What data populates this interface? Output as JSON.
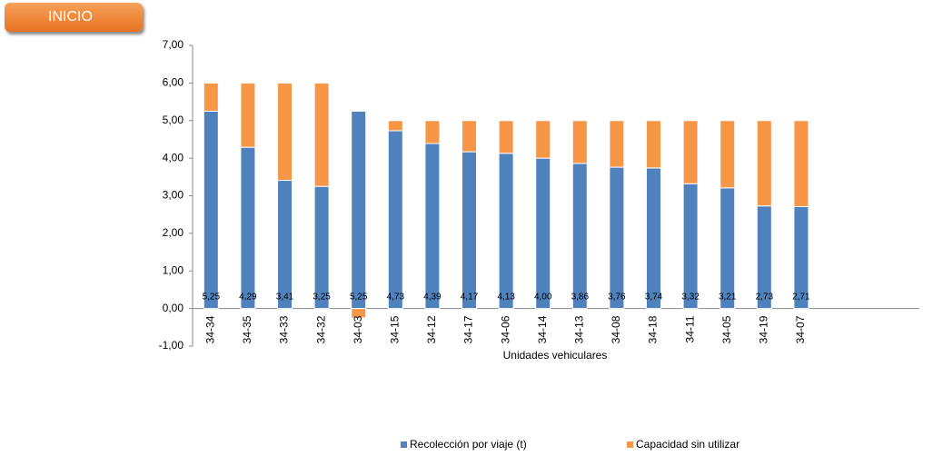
{
  "button": {
    "label": "INICIO"
  },
  "chart_data": {
    "type": "bar",
    "stacked": true,
    "x_label": "Unidades vehiculares",
    "categories": [
      "34-34",
      "34-35",
      "34-33",
      "34-32",
      "34-03",
      "34-15",
      "34-12",
      "34-17",
      "34-06",
      "34-14",
      "34-13",
      "34-08",
      "34-18",
      "34-11",
      "34-05",
      "34-19",
      "34-07"
    ],
    "series": [
      {
        "name": "Recolección por viaje (t)",
        "color": "#4f81bd",
        "values": [
          5.25,
          4.29,
          3.41,
          3.25,
          5.25,
          4.73,
          4.39,
          4.17,
          4.13,
          4.0,
          3.86,
          3.76,
          3.74,
          3.32,
          3.21,
          2.73,
          2.71
        ],
        "value_labels": [
          "5,25",
          "4,29",
          "3,41",
          "3,25",
          "5,25",
          "4,73",
          "4,39",
          "4,17",
          "4,13",
          "4,00",
          "3,86",
          "3,76",
          "3,74",
          "3,32",
          "3,21",
          "2,73",
          "2,71"
        ]
      },
      {
        "name": "Capacidad sin utilizar",
        "color": "#f79646",
        "values": [
          0.75,
          1.71,
          2.59,
          2.75,
          -0.25,
          0.27,
          0.61,
          0.83,
          0.87,
          1.0,
          1.14,
          1.24,
          1.26,
          1.68,
          1.79,
          2.27,
          2.29
        ]
      }
    ],
    "ylim": [
      -1,
      7
    ],
    "yticks": [
      {
        "value": -1,
        "label": "-1,00"
      },
      {
        "value": 0,
        "label": "0,00"
      },
      {
        "value": 1,
        "label": "1,00"
      },
      {
        "value": 2,
        "label": "2,00"
      },
      {
        "value": 3,
        "label": "3,00"
      },
      {
        "value": 4,
        "label": "4,00"
      },
      {
        "value": 5,
        "label": "5,00"
      },
      {
        "value": 6,
        "label": "6,00"
      },
      {
        "value": 7,
        "label": "7,00"
      }
    ],
    "legend": "bottom"
  }
}
